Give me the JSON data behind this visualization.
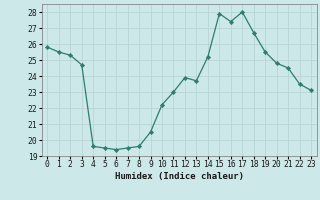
{
  "x": [
    0,
    1,
    2,
    3,
    4,
    5,
    6,
    7,
    8,
    9,
    10,
    11,
    12,
    13,
    14,
    15,
    16,
    17,
    18,
    19,
    20,
    21,
    22,
    23
  ],
  "y": [
    25.8,
    25.5,
    25.3,
    24.7,
    19.6,
    19.5,
    19.4,
    19.5,
    19.6,
    20.5,
    22.2,
    23.0,
    23.9,
    23.7,
    25.2,
    27.9,
    27.4,
    28.0,
    26.7,
    25.5,
    24.8,
    24.5,
    23.5,
    23.1
  ],
  "line_color": "#2e7d6e",
  "marker": "D",
  "marker_size": 2.2,
  "bg_color": "#cce8e8",
  "grid_color": "#b8d4d4",
  "xlabel": "Humidex (Indice chaleur)",
  "xlim": [
    -0.5,
    23.5
  ],
  "ylim": [
    19,
    28.5
  ],
  "yticks": [
    19,
    20,
    21,
    22,
    23,
    24,
    25,
    26,
    27,
    28
  ],
  "xticks": [
    0,
    1,
    2,
    3,
    4,
    5,
    6,
    7,
    8,
    9,
    10,
    11,
    12,
    13,
    14,
    15,
    16,
    17,
    18,
    19,
    20,
    21,
    22,
    23
  ],
  "label_fontsize": 6.5,
  "tick_fontsize": 5.8
}
